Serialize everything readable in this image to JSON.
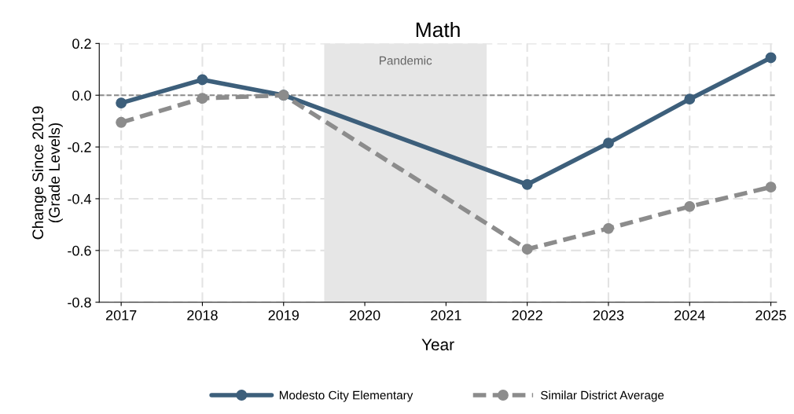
{
  "chart_data": {
    "type": "line",
    "title": "Math",
    "xlabel": "Year",
    "ylabel": "Change Since 2019\n(Grade Levels)",
    "x": [
      2017,
      2018,
      2019,
      2022,
      2023,
      2024,
      2025
    ],
    "series": [
      {
        "name": "Modesto City Elementary",
        "color": "#3d5f7b",
        "values": [
          -0.03,
          0.06,
          0.0,
          -0.345,
          -0.185,
          -0.015,
          0.145
        ],
        "line_style": "solid"
      },
      {
        "name": "Similar District Average",
        "color": "#8c8c8c",
        "values": [
          -0.105,
          -0.012,
          0.0,
          -0.595,
          -0.515,
          -0.43,
          -0.355
        ],
        "line_style": "dashed"
      }
    ],
    "xlim": [
      2016.73,
      2025.07
    ],
    "xticks": [
      2017,
      2018,
      2019,
      2020,
      2021,
      2022,
      2023,
      2024,
      2025
    ],
    "ylim": [
      -0.8,
      0.2
    ],
    "yticks": [
      {
        "value": -0.8,
        "label": "-0.8"
      },
      {
        "value": -0.6,
        "label": "-0.6"
      },
      {
        "value": -0.4,
        "label": "-0.4"
      },
      {
        "value": -0.2,
        "label": "-0.2"
      },
      {
        "value": 0.0,
        "label": "0.0"
      },
      {
        "value": 0.2,
        "label": "0.2"
      }
    ],
    "ref_lines": [
      {
        "axis": "y",
        "value": 0,
        "color": "#8c8c8c",
        "line_style": "dashed"
      }
    ],
    "bands": [
      {
        "axis": "x",
        "from": 2019.5,
        "to": 2021.5,
        "label": "Pandemic",
        "color": "#e6e6e6"
      }
    ],
    "grid": true,
    "legend": "bottom",
    "marker": "circle"
  }
}
